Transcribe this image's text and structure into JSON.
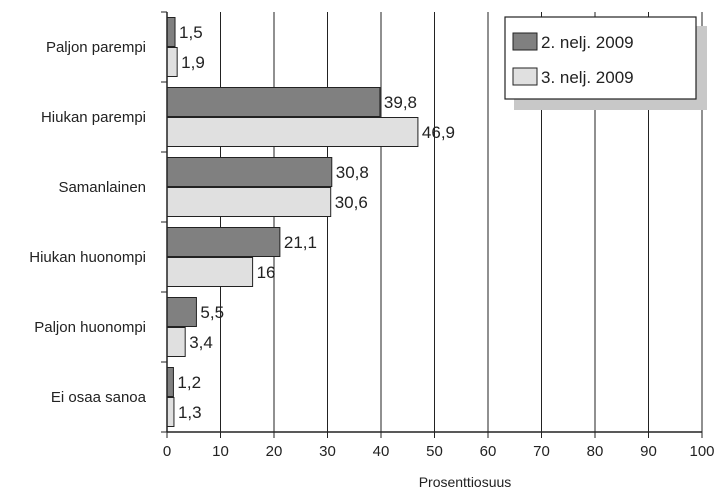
{
  "chart_data": {
    "type": "bar",
    "orientation": "horizontal",
    "title": "",
    "xlabel": "Prosenttiosuus",
    "ylabel": "",
    "xlim": [
      0,
      100
    ],
    "x_ticks": [
      0,
      10,
      20,
      30,
      40,
      50,
      60,
      70,
      80,
      90,
      100
    ],
    "grid": "vertical",
    "legend_position": "top-right",
    "categories": [
      "Paljon parempi",
      "Hiukan parempi",
      "Samanlainen",
      "Hiukan huonompi",
      "Paljon huonompi",
      "Ei osaa sanoa"
    ],
    "series": [
      {
        "name": "2. nelj. 2009",
        "color": "#808080",
        "values": [
          1.5,
          39.8,
          30.8,
          21.1,
          5.5,
          1.2
        ],
        "labels": [
          "1,5",
          "39,8",
          "30,8",
          "21,1",
          "5,5",
          "1,2"
        ]
      },
      {
        "name": "3. nelj. 2009",
        "color": "#e0e0e0",
        "values": [
          1.9,
          46.9,
          30.6,
          16,
          3.4,
          1.3
        ],
        "labels": [
          "1,9",
          "46,9",
          "30,6",
          "16",
          "3,4",
          "1,3"
        ]
      }
    ]
  }
}
